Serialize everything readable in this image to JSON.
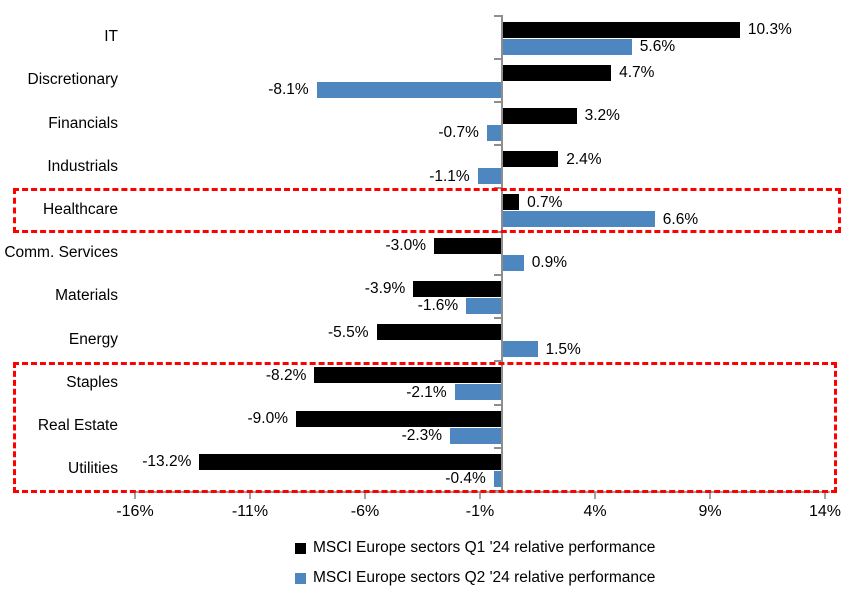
{
  "chart_data": {
    "type": "bar",
    "orientation": "horizontal",
    "title": "",
    "categories": [
      "IT",
      "Discretionary",
      "Financials",
      "Industrials",
      "Healthcare",
      "Comm. Services",
      "Materials",
      "Energy",
      "Staples",
      "Real Estate",
      "Utilities"
    ],
    "series": [
      {
        "name": "MSCI Europe sectors Q1 '24 relative performance",
        "color": "#000000",
        "values": [
          10.3,
          4.7,
          3.2,
          2.4,
          0.7,
          -3.0,
          -3.9,
          -5.5,
          -8.2,
          -9.0,
          -13.2
        ],
        "labels": [
          "10.3%",
          "4.7%",
          "3.2%",
          "2.4%",
          "0.7%",
          "-3.0%",
          "-3.9%",
          "-5.5%",
          "-8.2%",
          "-9.0%",
          "-13.2%"
        ]
      },
      {
        "name": "MSCI Europe sectors Q2 '24 relative performance",
        "color": "#4E86C0",
        "values": [
          5.6,
          -8.1,
          -0.7,
          -1.1,
          6.6,
          0.9,
          -1.6,
          1.5,
          -2.1,
          -2.3,
          -0.4
        ],
        "labels": [
          "5.6%",
          "-8.1%",
          "-0.7%",
          "-1.1%",
          "6.6%",
          "0.9%",
          "-1.6%",
          "1.5%",
          "-2.1%",
          "-2.3%",
          "-0.4%"
        ]
      }
    ],
    "value_axis": {
      "min": -16,
      "max": 14,
      "step": 5,
      "tick_labels": [
        "-16%",
        "-11%",
        "-6%",
        "-1%",
        "4%",
        "9%",
        "14%"
      ]
    },
    "grid": false,
    "legend_position": "bottom",
    "data_labels": "outside-end",
    "highlights": [
      {
        "name": "healthcare-box",
        "categories": [
          "Healthcare"
        ],
        "style": "red-dashed"
      },
      {
        "name": "defensives-box",
        "categories": [
          "Staples",
          "Real Estate",
          "Utilities"
        ],
        "style": "red-dashed"
      }
    ],
    "colors": {
      "q1_bar": "#000000",
      "q2_bar": "#4E86C0",
      "highlight_border": "#FE0000",
      "axis_line": "#8E8E8E",
      "label_text": "#000000"
    }
  }
}
